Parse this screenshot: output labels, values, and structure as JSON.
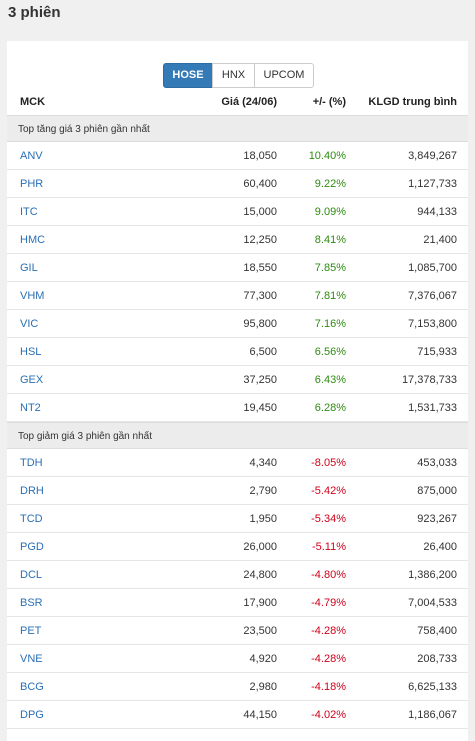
{
  "page": {
    "title": "3 phiên"
  },
  "exchange_tabs": [
    {
      "label": "HOSE",
      "active": true
    },
    {
      "label": "HNX",
      "active": false
    },
    {
      "label": "UPCOM",
      "active": false
    }
  ],
  "columns": {
    "symbol": "MCK",
    "price": "Giá (24/06)",
    "change": "+/- (%)",
    "volume": "KLGD trung bình"
  },
  "colors": {
    "accent": "#337ab7",
    "up": "#2e8b10",
    "down": "#d0021b",
    "link": "#2a6fb5"
  },
  "sections": [
    {
      "title": "Top tăng giá 3 phiên gần nhất",
      "direction": "up",
      "rows": [
        {
          "symbol": "ANV",
          "price": "18,050",
          "change": "10.40%",
          "volume": "3,849,267"
        },
        {
          "symbol": "PHR",
          "price": "60,400",
          "change": "9.22%",
          "volume": "1,127,733"
        },
        {
          "symbol": "ITC",
          "price": "15,000",
          "change": "9.09%",
          "volume": "944,133"
        },
        {
          "symbol": "HMC",
          "price": "12,250",
          "change": "8.41%",
          "volume": "21,400"
        },
        {
          "symbol": "GIL",
          "price": "18,550",
          "change": "7.85%",
          "volume": "1,085,700"
        },
        {
          "symbol": "VHM",
          "price": "77,300",
          "change": "7.81%",
          "volume": "7,376,067"
        },
        {
          "symbol": "VIC",
          "price": "95,800",
          "change": "7.16%",
          "volume": "7,153,800"
        },
        {
          "symbol": "HSL",
          "price": "6,500",
          "change": "6.56%",
          "volume": "715,933"
        },
        {
          "symbol": "GEX",
          "price": "37,250",
          "change": "6.43%",
          "volume": "17,378,733"
        },
        {
          "symbol": "NT2",
          "price": "19,450",
          "change": "6.28%",
          "volume": "1,531,733"
        }
      ]
    },
    {
      "title": "Top giảm giá 3 phiên gần nhất",
      "direction": "down",
      "rows": [
        {
          "symbol": "TDH",
          "price": "4,340",
          "change": "-8.05%",
          "volume": "453,033"
        },
        {
          "symbol": "DRH",
          "price": "2,790",
          "change": "-5.42%",
          "volume": "875,000"
        },
        {
          "symbol": "TCD",
          "price": "1,950",
          "change": "-5.34%",
          "volume": "923,267"
        },
        {
          "symbol": "PGD",
          "price": "26,000",
          "change": "-5.11%",
          "volume": "26,400"
        },
        {
          "symbol": "DCL",
          "price": "24,800",
          "change": "-4.80%",
          "volume": "1,386,200"
        },
        {
          "symbol": "BSR",
          "price": "17,900",
          "change": "-4.79%",
          "volume": "7,004,533"
        },
        {
          "symbol": "PET",
          "price": "23,500",
          "change": "-4.28%",
          "volume": "758,400"
        },
        {
          "symbol": "VNE",
          "price": "4,920",
          "change": "-4.28%",
          "volume": "208,733"
        },
        {
          "symbol": "BCG",
          "price": "2,980",
          "change": "-4.18%",
          "volume": "6,625,133"
        },
        {
          "symbol": "DPG",
          "price": "44,150",
          "change": "-4.02%",
          "volume": "1,186,067"
        }
      ]
    }
  ]
}
